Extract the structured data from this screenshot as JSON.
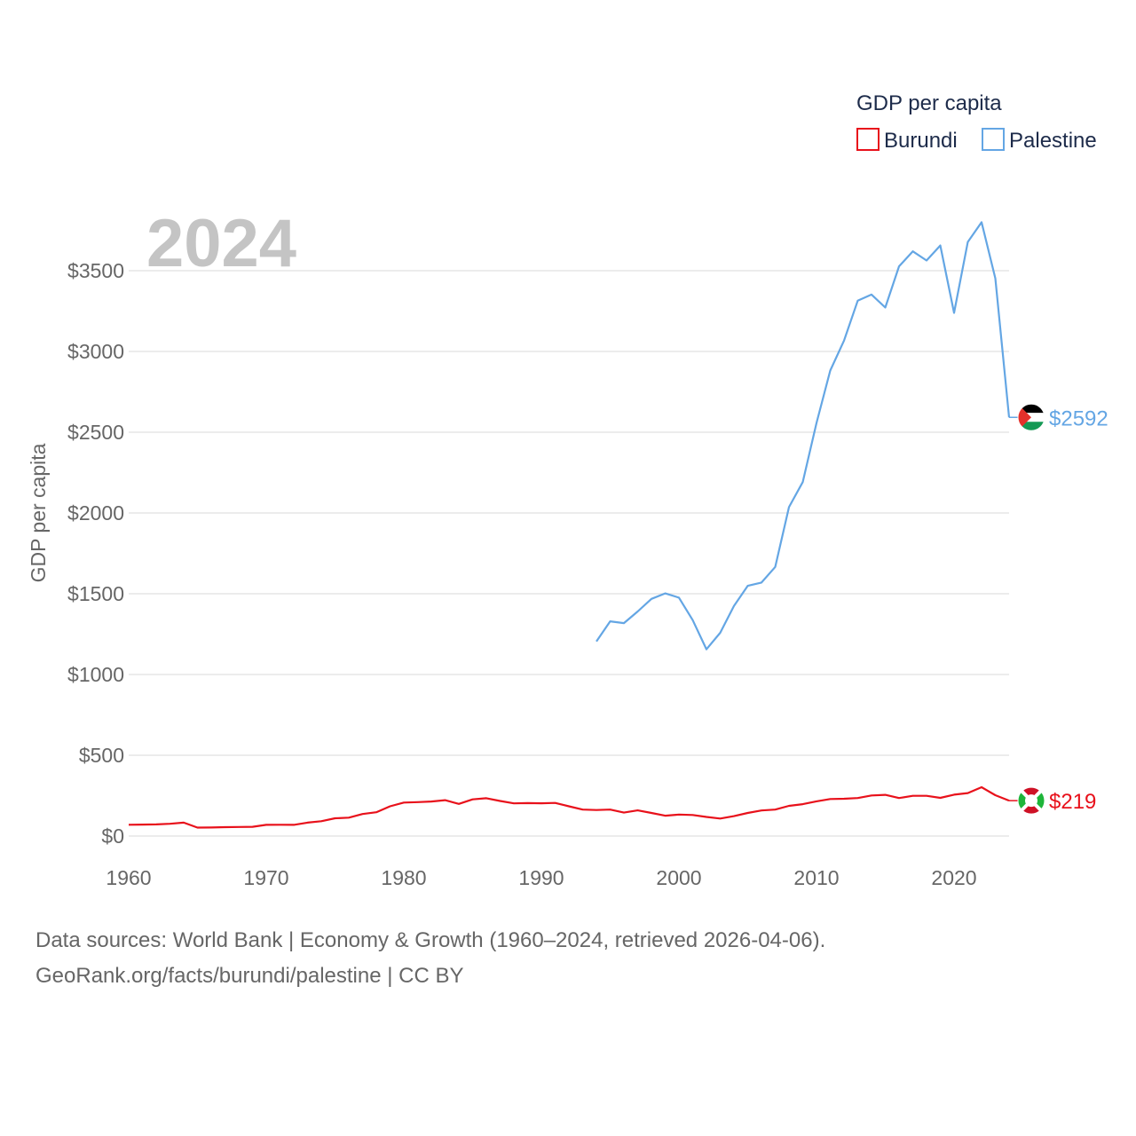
{
  "chart_data": {
    "type": "line",
    "title": "GDP per capita",
    "current_year_label": "2024",
    "ylabel": "GDP per capita",
    "xlabel": "",
    "xlim": [
      1960,
      2024
    ],
    "ylim": [
      0,
      3600
    ],
    "x_ticks": [
      1960,
      1970,
      1980,
      1990,
      2000,
      2010,
      2020
    ],
    "y_ticks": [
      {
        "value": 0,
        "label": "$0"
      },
      {
        "value": 500,
        "label": "$500"
      },
      {
        "value": 1000,
        "label": "$1000"
      },
      {
        "value": 1500,
        "label": "$1500"
      },
      {
        "value": 2000,
        "label": "$2000"
      },
      {
        "value": 2500,
        "label": "$2500"
      },
      {
        "value": 3000,
        "label": "$3000"
      },
      {
        "value": 3500,
        "label": "$3500"
      }
    ],
    "grid": true,
    "legend_position": "top-right",
    "series": [
      {
        "name": "Burundi",
        "color": "#e8111b",
        "end_label": "$219",
        "flag": "burundi-flag",
        "points": [
          [
            1960,
            70
          ],
          [
            1961,
            71
          ],
          [
            1962,
            72
          ],
          [
            1963,
            76
          ],
          [
            1964,
            83
          ],
          [
            1965,
            52
          ],
          [
            1966,
            53
          ],
          [
            1967,
            55
          ],
          [
            1968,
            56
          ],
          [
            1969,
            57
          ],
          [
            1970,
            69
          ],
          [
            1971,
            70
          ],
          [
            1972,
            69
          ],
          [
            1973,
            83
          ],
          [
            1974,
            92
          ],
          [
            1975,
            110
          ],
          [
            1976,
            114
          ],
          [
            1977,
            136
          ],
          [
            1978,
            147
          ],
          [
            1979,
            184
          ],
          [
            1980,
            207
          ],
          [
            1981,
            210
          ],
          [
            1982,
            214
          ],
          [
            1983,
            222
          ],
          [
            1984,
            199
          ],
          [
            1985,
            227
          ],
          [
            1986,
            234
          ],
          [
            1987,
            217
          ],
          [
            1988,
            202
          ],
          [
            1989,
            204
          ],
          [
            1990,
            203
          ],
          [
            1991,
            205
          ],
          [
            1992,
            184
          ],
          [
            1993,
            164
          ],
          [
            1994,
            161
          ],
          [
            1995,
            164
          ],
          [
            1996,
            145
          ],
          [
            1997,
            159
          ],
          [
            1998,
            143
          ],
          [
            1999,
            126
          ],
          [
            2000,
            133
          ],
          [
            2001,
            130
          ],
          [
            2002,
            118
          ],
          [
            2003,
            108
          ],
          [
            2004,
            123
          ],
          [
            2005,
            143
          ],
          [
            2006,
            158
          ],
          [
            2007,
            164
          ],
          [
            2008,
            187
          ],
          [
            2009,
            197
          ],
          [
            2010,
            215
          ],
          [
            2011,
            229
          ],
          [
            2012,
            231
          ],
          [
            2013,
            235
          ],
          [
            2014,
            251
          ],
          [
            2015,
            255
          ],
          [
            2016,
            235
          ],
          [
            2017,
            249
          ],
          [
            2018,
            249
          ],
          [
            2019,
            236
          ],
          [
            2020,
            256
          ],
          [
            2021,
            266
          ],
          [
            2022,
            302
          ],
          [
            2023,
            253
          ],
          [
            2024,
            219
          ]
        ]
      },
      {
        "name": "Palestine",
        "color": "#64a6e4",
        "end_label": "$2592",
        "flag": "palestine-flag",
        "points": [
          [
            1994,
            1205
          ],
          [
            1995,
            1329
          ],
          [
            1996,
            1318
          ],
          [
            1997,
            1390
          ],
          [
            1998,
            1468
          ],
          [
            1999,
            1502
          ],
          [
            2000,
            1476
          ],
          [
            2001,
            1337
          ],
          [
            2002,
            1156
          ],
          [
            2003,
            1258
          ],
          [
            2004,
            1425
          ],
          [
            2005,
            1549
          ],
          [
            2006,
            1569
          ],
          [
            2007,
            1666
          ],
          [
            2008,
            2036
          ],
          [
            2009,
            2191
          ],
          [
            2010,
            2557
          ],
          [
            2011,
            2882
          ],
          [
            2012,
            3067
          ],
          [
            2013,
            3315
          ],
          [
            2014,
            3352
          ],
          [
            2015,
            3272
          ],
          [
            2016,
            3527
          ],
          [
            2017,
            3620
          ],
          [
            2018,
            3563
          ],
          [
            2019,
            3656
          ],
          [
            2020,
            3239
          ],
          [
            2021,
            3678
          ],
          [
            2022,
            3800
          ],
          [
            2023,
            3453
          ],
          [
            2024,
            2592
          ]
        ]
      }
    ]
  },
  "footer": {
    "sources": "Data sources: World Bank | Economy & Growth (1960–2024, retrieved 2026-04-06).",
    "url": "GeoRank.org/facts/burundi/palestine | CC BY"
  }
}
